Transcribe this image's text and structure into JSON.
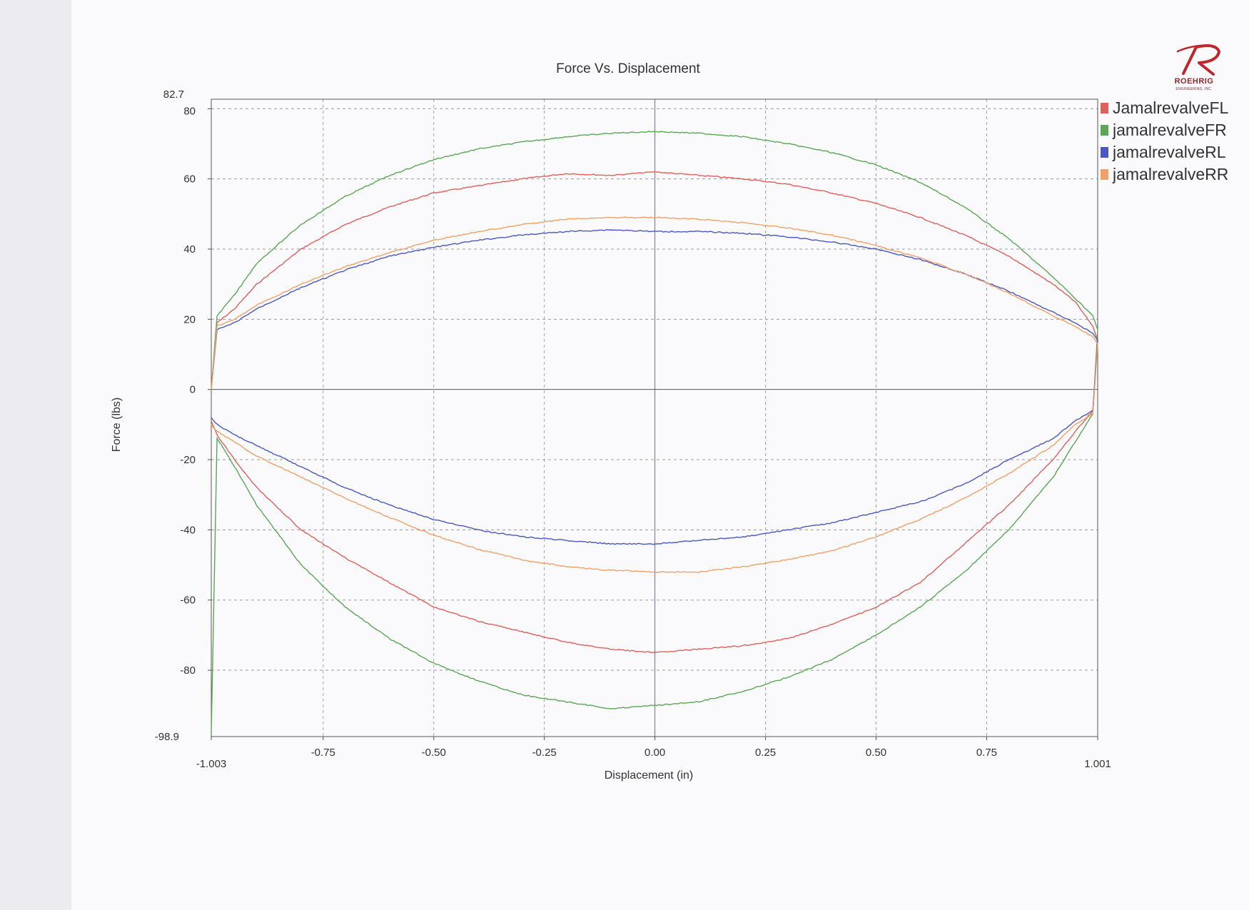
{
  "logo": {
    "name": "ROEHRIG",
    "subtitle": "ENGINEERING, INC.",
    "color": "#c0272d"
  },
  "chart_data": {
    "type": "line",
    "title": "Force Vs. Displacement",
    "xlabel": "Displacement (in)",
    "ylabel": "Force (lbs)",
    "xlim": [
      -1.003,
      1.001
    ],
    "ylim": [
      -98.9,
      82.7
    ],
    "xticks": [
      -1.003,
      -0.75,
      -0.5,
      -0.25,
      0.0,
      0.25,
      0.5,
      0.75,
      1.001
    ],
    "xtick_labels": [
      "-1.003",
      "-0.75",
      "-0.50",
      "-0.25",
      "0.00",
      "0.25",
      "0.50",
      "0.75",
      "1.001"
    ],
    "yticks": [
      82.7,
      80,
      60,
      40,
      20,
      0,
      -20,
      -40,
      -60,
      -80,
      -98.9
    ],
    "ytick_labels": [
      "82.7",
      "80",
      "60",
      "40",
      "20",
      "0",
      "-20",
      "-40",
      "-60",
      "-80",
      "-98.9"
    ],
    "grid": true,
    "legend_position": "top-right outside",
    "series": [
      {
        "name": "JamalrevalveFL",
        "color": "#e0605a",
        "x": [
          -1.003,
          -0.99,
          -0.95,
          -0.9,
          -0.8,
          -0.7,
          -0.6,
          -0.5,
          -0.4,
          -0.3,
          -0.2,
          -0.1,
          0.0,
          0.1,
          0.2,
          0.3,
          0.4,
          0.5,
          0.6,
          0.7,
          0.8,
          0.9,
          0.95,
          0.99,
          1.001,
          0.99,
          0.95,
          0.9,
          0.8,
          0.7,
          0.6,
          0.5,
          0.4,
          0.3,
          0.2,
          0.1,
          0.0,
          -0.1,
          -0.2,
          -0.3,
          -0.4,
          -0.5,
          -0.6,
          -0.7,
          -0.8,
          -0.9,
          -0.95,
          -0.99,
          -1.003
        ],
        "y": [
          0,
          19,
          23,
          30,
          40,
          47,
          52,
          56,
          58,
          60,
          61.5,
          61,
          62,
          61,
          60,
          58.5,
          56,
          53,
          49,
          44,
          38,
          30,
          25,
          18,
          14,
          -6,
          -12,
          -20,
          -33,
          -44,
          -55,
          -62,
          -67,
          -71,
          -73,
          -74,
          -75,
          -74,
          -72,
          -69,
          -66,
          -62,
          -55,
          -48,
          -40,
          -28,
          -20,
          -13,
          -9
        ]
      },
      {
        "name": "jamalrevalveFR",
        "color": "#5aa854",
        "x": [
          -1.003,
          -0.99,
          -0.95,
          -0.9,
          -0.8,
          -0.7,
          -0.6,
          -0.5,
          -0.4,
          -0.3,
          -0.2,
          -0.1,
          0.0,
          0.1,
          0.2,
          0.3,
          0.4,
          0.5,
          0.6,
          0.7,
          0.8,
          0.9,
          0.95,
          0.99,
          1.001,
          0.99,
          0.95,
          0.9,
          0.8,
          0.7,
          0.6,
          0.5,
          0.4,
          0.3,
          0.2,
          0.1,
          0.0,
          -0.1,
          -0.2,
          -0.3,
          -0.4,
          -0.5,
          -0.6,
          -0.7,
          -0.8,
          -0.9,
          -0.95,
          -0.99,
          -1.003
        ],
        "y": [
          0,
          21,
          27,
          36,
          47,
          55,
          61,
          65.5,
          68.5,
          70.5,
          72,
          73,
          73.5,
          73,
          72,
          70,
          67.5,
          64,
          59,
          52,
          43,
          32,
          26,
          21,
          17,
          -7,
          -15,
          -25,
          -40,
          -52,
          -62,
          -70,
          -77,
          -82,
          -86,
          -89,
          -90,
          -91,
          -89,
          -87,
          -83,
          -78,
          -71,
          -62,
          -50,
          -33,
          -22,
          -14,
          -98
        ]
      },
      {
        "name": "jamalrevalveRL",
        "color": "#4a58c4",
        "x": [
          -1.003,
          -0.99,
          -0.95,
          -0.9,
          -0.8,
          -0.7,
          -0.6,
          -0.5,
          -0.4,
          -0.3,
          -0.2,
          -0.1,
          0.0,
          0.1,
          0.2,
          0.3,
          0.4,
          0.5,
          0.6,
          0.7,
          0.8,
          0.9,
          0.95,
          0.99,
          1.001,
          0.99,
          0.95,
          0.9,
          0.8,
          0.7,
          0.6,
          0.5,
          0.4,
          0.3,
          0.2,
          0.1,
          0.0,
          -0.1,
          -0.2,
          -0.3,
          -0.4,
          -0.5,
          -0.6,
          -0.7,
          -0.8,
          -0.9,
          -0.95,
          -0.99,
          -1.003
        ],
        "y": [
          0,
          17,
          19,
          23,
          29,
          34,
          38,
          40.5,
          42.5,
          44,
          45,
          45.5,
          45,
          45,
          44.5,
          43.5,
          42,
          40,
          37,
          33,
          28,
          22,
          19,
          16,
          14,
          -6,
          -9,
          -14,
          -20,
          -27,
          -32,
          -35,
          -38,
          -40,
          -42,
          -43,
          -44,
          -44,
          -43,
          -42,
          -40,
          -37,
          -33,
          -28,
          -22,
          -16,
          -13,
          -10,
          -8
        ]
      },
      {
        "name": "jamalrevalveRR",
        "color": "#f2a068",
        "x": [
          -1.003,
          -0.99,
          -0.95,
          -0.9,
          -0.8,
          -0.7,
          -0.6,
          -0.5,
          -0.4,
          -0.3,
          -0.2,
          -0.1,
          0.0,
          0.1,
          0.2,
          0.3,
          0.4,
          0.5,
          0.6,
          0.7,
          0.8,
          0.9,
          0.95,
          0.99,
          1.001,
          0.99,
          0.95,
          0.9,
          0.8,
          0.7,
          0.6,
          0.5,
          0.4,
          0.3,
          0.2,
          0.1,
          0.0,
          -0.1,
          -0.2,
          -0.3,
          -0.4,
          -0.5,
          -0.6,
          -0.7,
          -0.8,
          -0.9,
          -0.95,
          -0.99,
          -1.003
        ],
        "y": [
          0,
          18,
          20,
          24,
          30,
          35,
          39,
          42.5,
          45,
          47,
          48.5,
          49,
          49,
          48.5,
          47.5,
          46,
          44,
          41,
          37.5,
          33,
          27.5,
          21,
          18,
          15,
          13,
          -7,
          -10,
          -16,
          -24,
          -31,
          -37,
          -42,
          -46,
          -48.5,
          -50.5,
          -52,
          -52,
          -51.5,
          -50.5,
          -48.5,
          -45.5,
          -41.5,
          -36.5,
          -31,
          -25,
          -19,
          -15,
          -12,
          -10
        ]
      }
    ]
  }
}
